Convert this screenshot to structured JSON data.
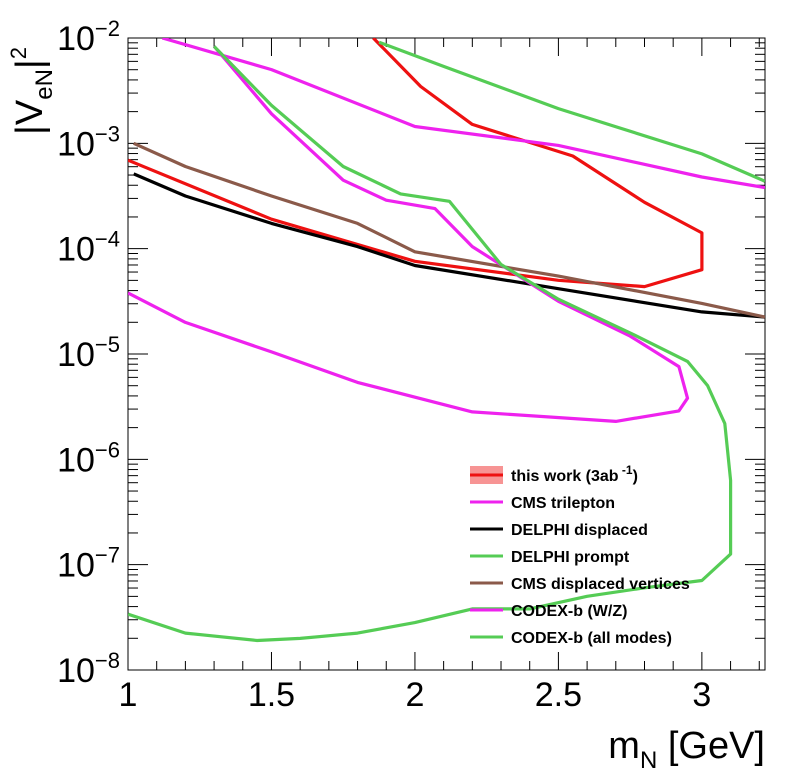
{
  "chart_data": {
    "type": "line",
    "title": "",
    "xlabel": {
      "main": "m",
      "sub": "N",
      "suffix": " [GeV]"
    },
    "ylabel": {
      "main": "|V",
      "sub": "eN",
      "bar": "|",
      "sup": "2"
    },
    "xlim": [
      1.0,
      3.22
    ],
    "ylim_log10": [
      -8,
      -2
    ],
    "yscale": "log",
    "x_ticks": [
      "1",
      "1.5",
      "2",
      "2.5",
      "3"
    ],
    "x_tick_values": [
      1,
      1.5,
      2,
      2.5,
      3
    ],
    "y_tick_exponents": [
      "−8",
      "−7",
      "−6",
      "−5",
      "−4",
      "−3",
      "−2"
    ],
    "y_tick_base": "10",
    "legend_position": "bottom-right",
    "series": [
      {
        "name": "this work (3ab",
        "name_sup": "-1",
        "name_suffix": ")",
        "color": "#ee1111",
        "legend_style": "band",
        "points": [
          [
            1.855,
            -2.0
          ],
          [
            2.02,
            -2.46
          ],
          [
            2.2,
            -2.82
          ],
          [
            2.55,
            -3.12
          ],
          [
            2.8,
            -3.56
          ],
          [
            3.0,
            -3.85
          ],
          [
            3.0,
            -4.2
          ],
          [
            2.8,
            -4.36
          ],
          [
            2.5,
            -4.3
          ],
          [
            2.0,
            -4.12
          ],
          [
            1.5,
            -3.72
          ],
          [
            1.0,
            -3.16
          ]
        ]
      },
      {
        "name": "CMS trilepton",
        "color": "#ee22ee",
        "points": [
          [
            1.12,
            -2.0
          ],
          [
            1.5,
            -2.3
          ],
          [
            2.0,
            -2.84
          ],
          [
            2.5,
            -3.02
          ],
          [
            3.0,
            -3.32
          ],
          [
            3.22,
            -3.42
          ]
        ]
      },
      {
        "name": "DELPHI displaced",
        "color": "#000000",
        "points": [
          [
            1.02,
            -3.29
          ],
          [
            1.2,
            -3.5
          ],
          [
            1.5,
            -3.76
          ],
          [
            1.8,
            -3.98
          ],
          [
            2.0,
            -4.16
          ],
          [
            2.5,
            -4.38
          ],
          [
            3.0,
            -4.6
          ],
          [
            3.22,
            -4.65
          ]
        ]
      },
      {
        "name": "DELPHI prompt",
        "color": "#55cc55",
        "points": [
          [
            1.875,
            -2.04
          ],
          [
            2.1,
            -2.27
          ],
          [
            2.5,
            -2.67
          ],
          [
            3.0,
            -3.1
          ],
          [
            3.22,
            -3.36
          ]
        ]
      },
      {
        "name": "CMS displaced vertices",
        "color": "#8b5a4a",
        "points": [
          [
            1.02,
            -3.0
          ],
          [
            1.2,
            -3.22
          ],
          [
            1.5,
            -3.5
          ],
          [
            1.8,
            -3.76
          ],
          [
            2.0,
            -4.03
          ],
          [
            2.5,
            -4.26
          ],
          [
            3.0,
            -4.52
          ],
          [
            3.22,
            -4.65
          ]
        ]
      },
      {
        "name": "CODEX-b (W/Z)",
        "color": "#ee22ee",
        "points": [
          [
            1.3,
            -2.08
          ],
          [
            1.5,
            -2.72
          ],
          [
            1.75,
            -3.35
          ],
          [
            1.9,
            -3.54
          ],
          [
            2.07,
            -3.62
          ],
          [
            2.2,
            -3.98
          ],
          [
            2.5,
            -4.5
          ],
          [
            2.75,
            -4.83
          ],
          [
            2.92,
            -5.12
          ],
          [
            2.95,
            -5.42
          ],
          [
            2.92,
            -5.54
          ],
          [
            2.7,
            -5.64
          ],
          [
            2.2,
            -5.55
          ],
          [
            1.8,
            -5.27
          ],
          [
            1.5,
            -4.98
          ],
          [
            1.2,
            -4.7
          ],
          [
            1.0,
            -4.42
          ]
        ]
      },
      {
        "name": "CODEX-b (all modes)",
        "color": "#55cc55",
        "points": [
          [
            1.3,
            -2.08
          ],
          [
            1.5,
            -2.64
          ],
          [
            1.75,
            -3.22
          ],
          [
            1.95,
            -3.48
          ],
          [
            2.12,
            -3.55
          ],
          [
            2.3,
            -4.15
          ],
          [
            2.5,
            -4.48
          ],
          [
            2.75,
            -4.8
          ],
          [
            2.95,
            -5.07
          ],
          [
            3.02,
            -5.3
          ],
          [
            3.08,
            -5.66
          ],
          [
            3.1,
            -6.2
          ],
          [
            3.1,
            -6.8
          ],
          [
            3.1,
            -6.9
          ],
          [
            3.0,
            -7.15
          ],
          [
            2.8,
            -7.22
          ],
          [
            2.6,
            -7.3
          ],
          [
            2.4,
            -7.42
          ],
          [
            2.2,
            -7.42
          ],
          [
            2.0,
            -7.55
          ],
          [
            1.8,
            -7.65
          ],
          [
            1.6,
            -7.7
          ],
          [
            1.45,
            -7.72
          ],
          [
            1.2,
            -7.65
          ],
          [
            1.0,
            -7.47
          ]
        ]
      }
    ]
  }
}
